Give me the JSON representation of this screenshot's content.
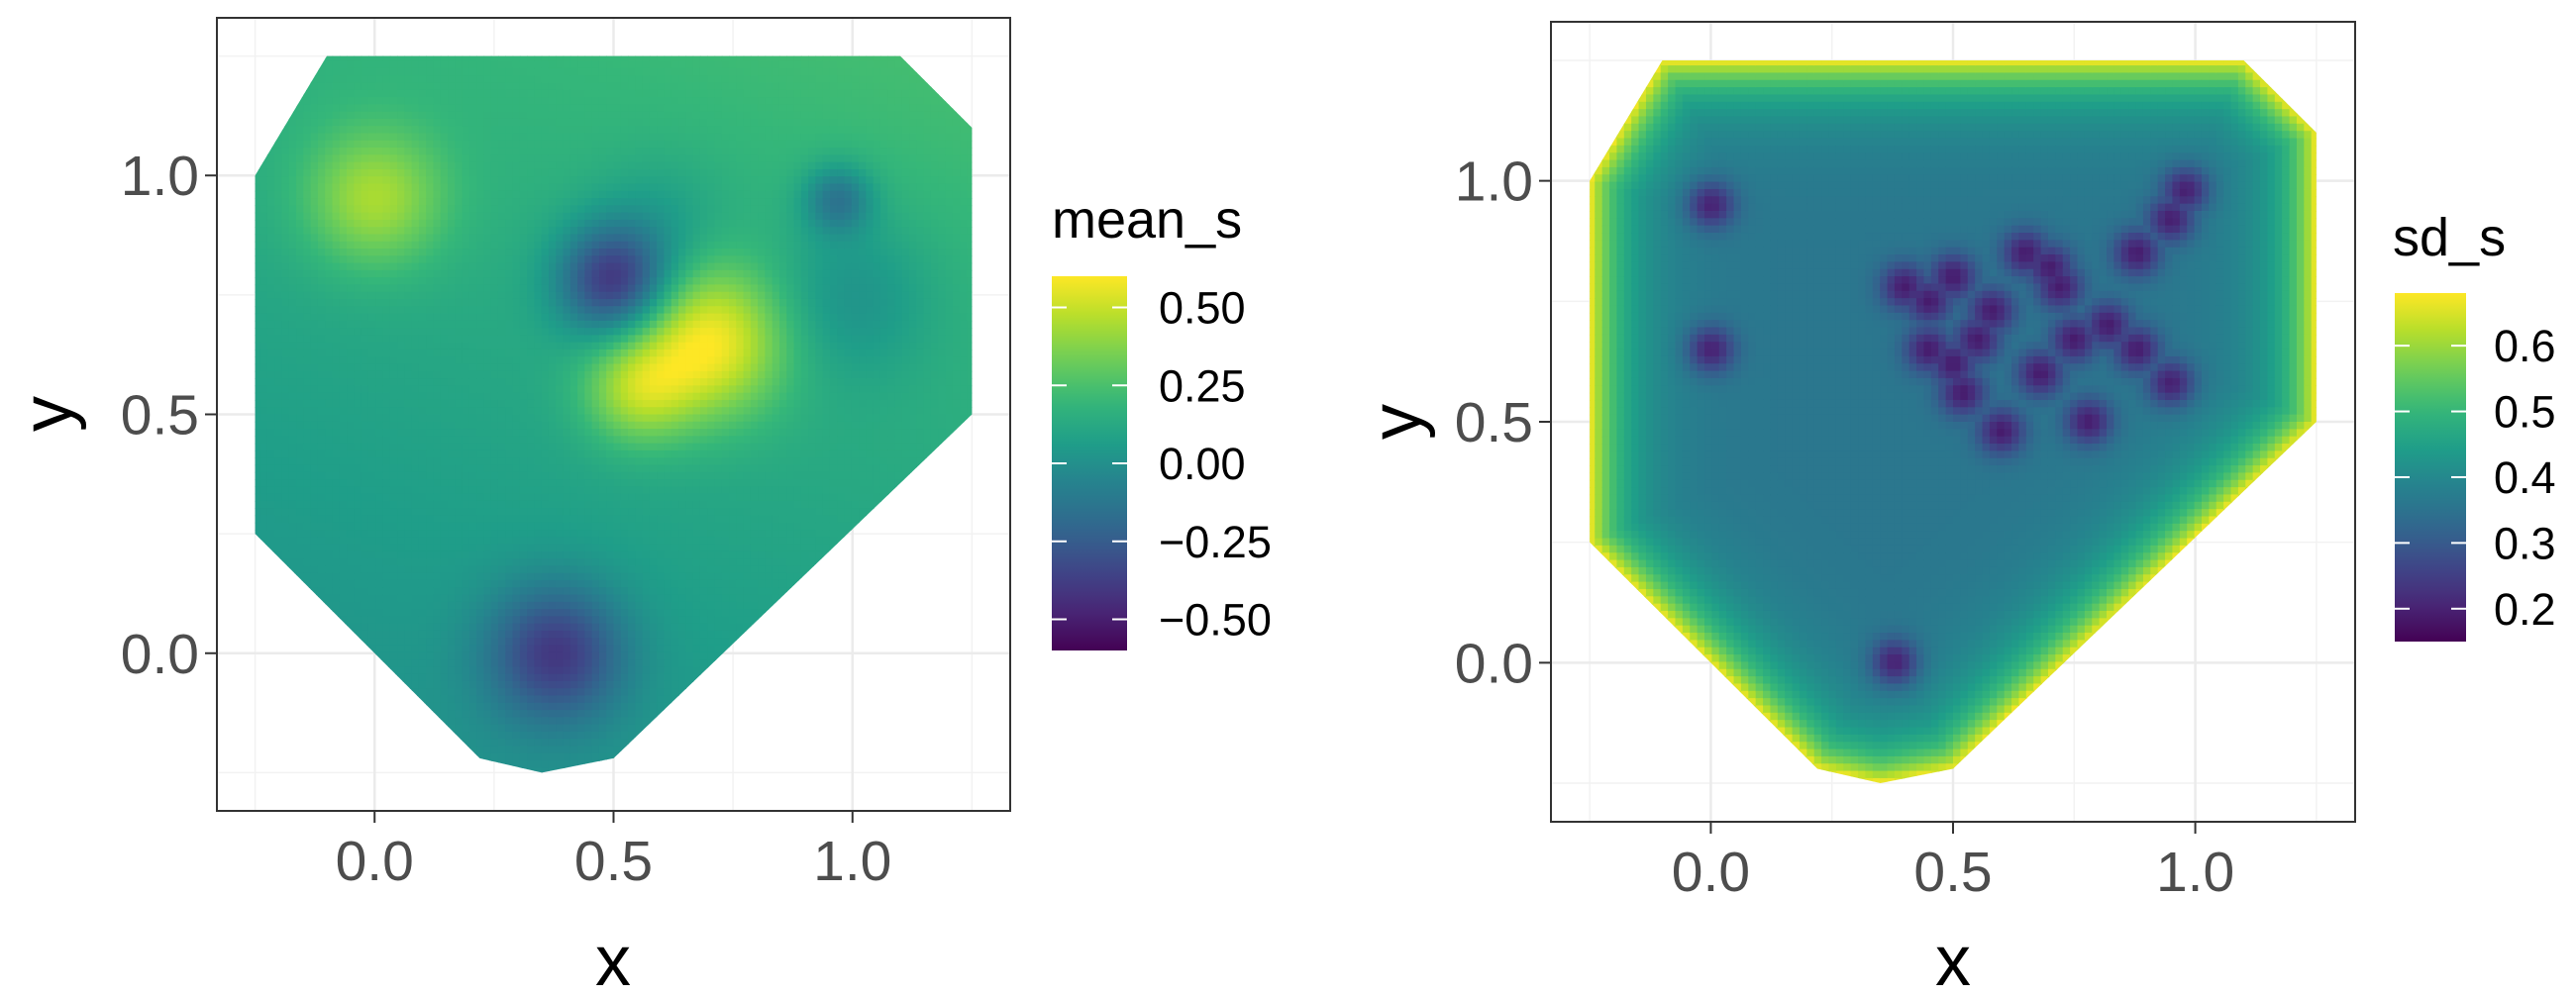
{
  "chart_data": [
    {
      "type": "heatmap",
      "title": "",
      "xlabel": "x",
      "ylabel": "y",
      "xlim": [
        -0.33,
        1.33
      ],
      "ylim": [
        -0.33,
        1.33
      ],
      "x_ticks": [
        0.0,
        0.5,
        1.0
      ],
      "y_ticks": [
        0.0,
        0.5,
        1.0
      ],
      "x_tick_labels": [
        "0.0",
        "0.5",
        "1.0"
      ],
      "y_tick_labels": [
        "0.0",
        "0.5",
        "1.0"
      ],
      "grid": true,
      "colormap": "viridis",
      "legend": {
        "title": "mean_s",
        "position": "right",
        "range": [
          -0.6,
          0.6
        ],
        "ticks": [
          0.5,
          0.25,
          0.0,
          -0.25,
          -0.5
        ],
        "tick_labels": [
          "0.50",
          "0.25",
          "0.00",
          "−0.25",
          "−0.50"
        ]
      },
      "hull": [
        [
          -0.25,
          1.0
        ],
        [
          -0.1,
          1.25
        ],
        [
          1.1,
          1.25
        ],
        [
          1.25,
          1.1
        ],
        [
          1.25,
          0.5
        ],
        [
          0.5,
          -0.22
        ],
        [
          0.35,
          -0.25
        ],
        [
          0.22,
          -0.22
        ],
        [
          -0.25,
          0.25
        ]
      ],
      "field": {
        "base": 0.03,
        "gradient_x": 0.05,
        "gradient_y": 0.12,
        "features": [
          {
            "x": 0.0,
            "y": 0.95,
            "amp": 0.3,
            "sigma": 0.1
          },
          {
            "x": 0.5,
            "y": 0.78,
            "amp": -0.55,
            "sigma": 0.08
          },
          {
            "x": 0.7,
            "y": 0.65,
            "amp": 0.45,
            "sigma": 0.11
          },
          {
            "x": 0.55,
            "y": 0.55,
            "amp": 0.3,
            "sigma": 0.08
          },
          {
            "x": 0.38,
            "y": 0.0,
            "amp": -0.45,
            "sigma": 0.1
          },
          {
            "x": 0.97,
            "y": 0.95,
            "amp": -0.3,
            "sigma": 0.05
          },
          {
            "x": 1.0,
            "y": 0.75,
            "amp": -0.15,
            "sigma": 0.12
          },
          {
            "x": 0.6,
            "y": 0.9,
            "amp": -0.1,
            "sigma": 0.1
          }
        ]
      }
    },
    {
      "type": "heatmap",
      "title": "",
      "xlabel": "x",
      "ylabel": "y",
      "xlim": [
        -0.33,
        1.33
      ],
      "ylim": [
        -0.33,
        1.33
      ],
      "x_ticks": [
        0.0,
        0.5,
        1.0
      ],
      "y_ticks": [
        0.0,
        0.5,
        1.0
      ],
      "x_tick_labels": [
        "0.0",
        "0.5",
        "1.0"
      ],
      "y_tick_labels": [
        "0.0",
        "0.5",
        "1.0"
      ],
      "grid": true,
      "colormap": "viridis",
      "legend": {
        "title": "sd_s",
        "position": "right",
        "range": [
          0.15,
          0.68
        ],
        "ticks": [
          0.6,
          0.5,
          0.4,
          0.3,
          0.2
        ],
        "tick_labels": [
          "0.6",
          "0.5",
          "0.4",
          "0.3",
          "0.2"
        ]
      },
      "hull": [
        [
          -0.25,
          1.0
        ],
        [
          -0.1,
          1.25
        ],
        [
          1.1,
          1.25
        ],
        [
          1.25,
          1.1
        ],
        [
          1.25,
          0.5
        ],
        [
          0.5,
          -0.22
        ],
        [
          0.35,
          -0.25
        ],
        [
          0.22,
          -0.22
        ],
        [
          -0.25,
          0.25
        ]
      ],
      "sd_field": {
        "base": 0.36,
        "edge_max": 0.67,
        "edge_width": 0.16,
        "dip_amp": 0.17,
        "dip_sigma": 0.035,
        "observation_points": [
          [
            0.0,
            0.95
          ],
          [
            0.0,
            0.65
          ],
          [
            0.38,
            0.0
          ],
          [
            0.4,
            0.78
          ],
          [
            0.45,
            0.75
          ],
          [
            0.5,
            0.8
          ],
          [
            0.58,
            0.73
          ],
          [
            0.65,
            0.85
          ],
          [
            0.72,
            0.78
          ],
          [
            0.75,
            0.67
          ],
          [
            0.82,
            0.7
          ],
          [
            0.88,
            0.85
          ],
          [
            0.95,
            0.92
          ],
          [
            0.98,
            0.98
          ],
          [
            0.95,
            0.58
          ],
          [
            0.6,
            0.48
          ],
          [
            0.78,
            0.5
          ],
          [
            0.5,
            0.62
          ],
          [
            0.45,
            0.65
          ],
          [
            0.52,
            0.56
          ],
          [
            0.68,
            0.6
          ],
          [
            0.88,
            0.65
          ],
          [
            0.7,
            0.82
          ],
          [
            0.55,
            0.67
          ]
        ]
      }
    }
  ]
}
